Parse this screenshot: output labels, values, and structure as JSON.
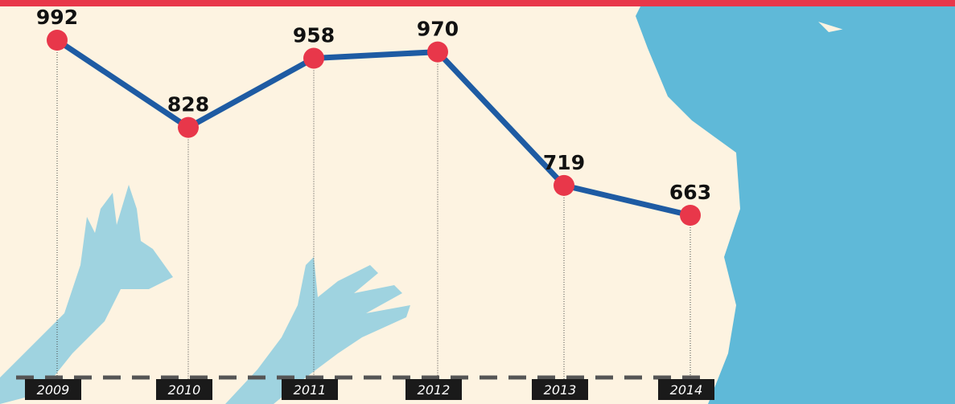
{
  "chart_data": {
    "type": "line",
    "categories": [
      "2009",
      "2010",
      "2011",
      "2012",
      "2013",
      "2014"
    ],
    "values": [
      992,
      828,
      958,
      970,
      719,
      663
    ],
    "color": "#1e5ba3",
    "marker_color": "#e8374a"
  }
}
